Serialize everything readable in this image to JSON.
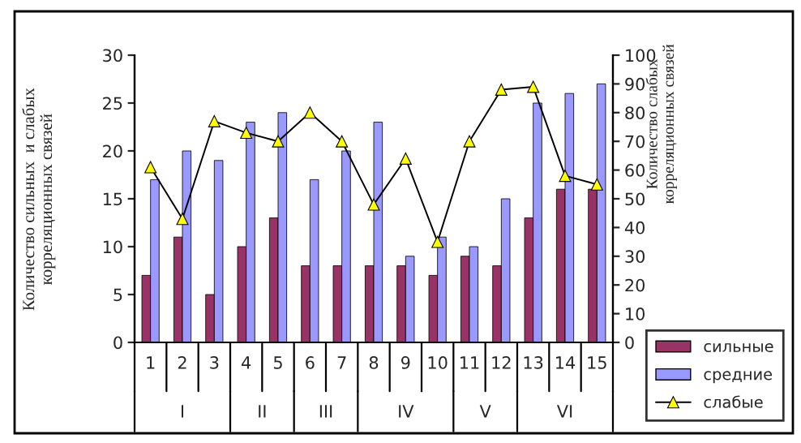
{
  "chart_data": {
    "type": "bar",
    "ylabel": "Количество сильных  и слабых\nкорреляционных связей",
    "y2label": "Количество слабых\nкорреляционных связей",
    "categories": [
      "1",
      "2",
      "3",
      "4",
      "5",
      "6",
      "7",
      "8",
      "9",
      "10",
      "11",
      "12",
      "13",
      "14",
      "15"
    ],
    "series": [
      {
        "name": "сильные",
        "color": "#993366",
        "values": [
          7,
          11,
          5,
          10,
          13,
          8,
          8,
          8,
          8,
          7,
          9,
          8,
          13,
          16,
          16
        ]
      },
      {
        "name": "средние",
        "color": "#9999ff",
        "values": [
          17,
          20,
          19,
          23,
          24,
          17,
          20,
          23,
          9,
          11,
          10,
          15,
          25,
          26,
          27
        ]
      },
      {
        "name": "слабые",
        "type": "line",
        "axis": "y2",
        "color": "#ffff00",
        "values": [
          61,
          43,
          77,
          73,
          70,
          80,
          70,
          48,
          64,
          35,
          70,
          88,
          89,
          58,
          55
        ]
      }
    ],
    "ylim": [
      0,
      30
    ],
    "yticks": [
      0,
      5,
      10,
      15,
      20,
      25,
      30
    ],
    "y2lim": [
      0,
      100
    ],
    "y2ticks": [
      0,
      10,
      20,
      30,
      40,
      50,
      60,
      70,
      80,
      90,
      100
    ],
    "annotations": [
      "I",
      "II",
      "III",
      "IV",
      "V",
      "VI"
    ],
    "marker": "triangle",
    "grid": false,
    "legend": "bottom right"
  }
}
